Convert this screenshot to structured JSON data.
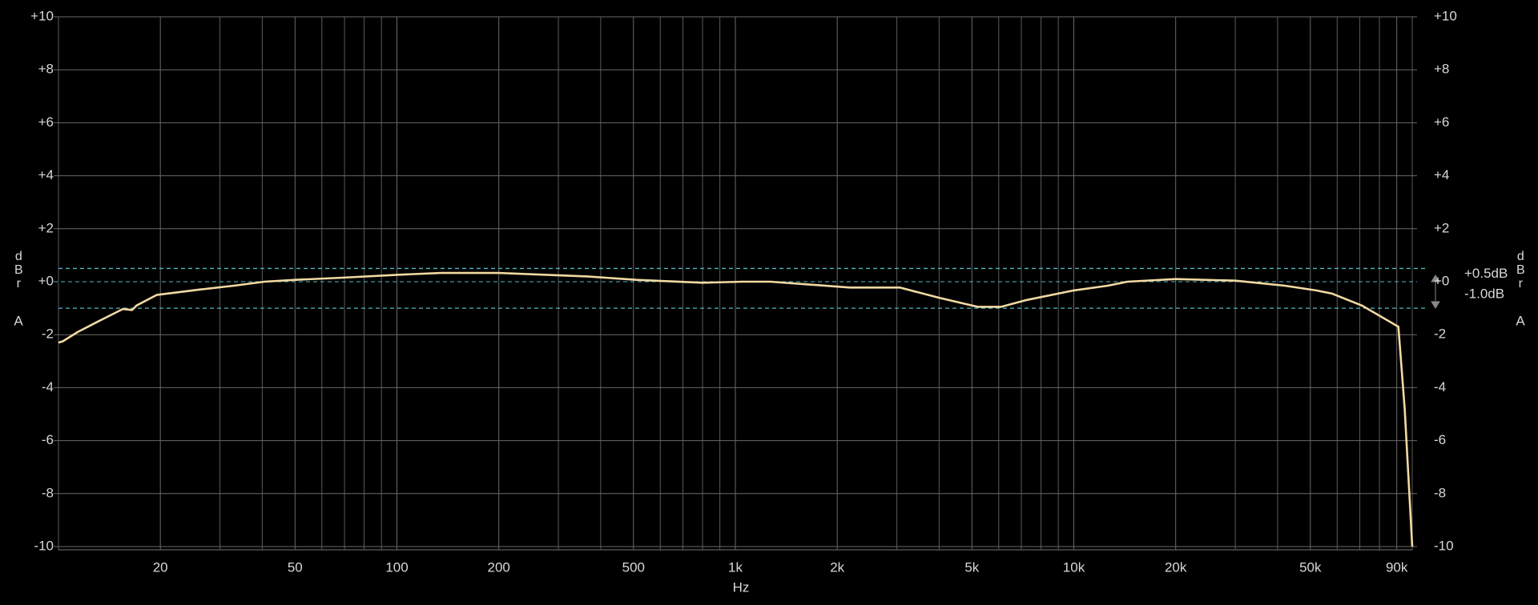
{
  "chart_data": {
    "type": "line",
    "log_x": true,
    "x_label": "Hz",
    "y_label_top": "dBr",
    "y_label_bottom": "A",
    "xlim": [
      10,
      100000
    ],
    "xticks": [
      20,
      50,
      100,
      200,
      500,
      {
        "value": 1000,
        "label": "1k"
      },
      {
        "value": 2000,
        "label": "2k"
      },
      {
        "value": 5000,
        "label": "5k"
      },
      {
        "value": 10000,
        "label": "10k"
      },
      {
        "value": 20000,
        "label": "20k"
      },
      {
        "value": 50000,
        "label": "50k"
      },
      {
        "value": 90000,
        "label": "90k"
      }
    ],
    "x_grid": [
      10,
      30,
      40,
      60,
      70,
      80,
      90,
      300,
      400,
      600,
      700,
      800,
      900,
      3000,
      4000,
      6000,
      7000,
      8000,
      9000,
      30000,
      40000,
      60000,
      70000,
      80000,
      100000
    ],
    "ylim": [
      -10,
      10
    ],
    "yticks": [
      {
        "value": 10,
        "label": "+10"
      },
      {
        "value": 8,
        "label": "+8"
      },
      {
        "value": 6,
        "label": "+6"
      },
      {
        "value": 4,
        "label": "+4"
      },
      {
        "value": 2,
        "label": "+2"
      },
      {
        "value": 0,
        "label": "+0"
      },
      -2,
      -4,
      -6,
      -8,
      -10
    ],
    "grid": true,
    "zero_line": true,
    "reference_lines": [
      {
        "value": 0.5,
        "label": "+0.5dB"
      },
      {
        "value": -1.0,
        "label": "-1.0dB"
      }
    ],
    "color": "#f2d9a2",
    "x": [
      10,
      10.3,
      11.4,
      13.1,
      15.5,
      16.5,
      17,
      19.5,
      26,
      33,
      40.6,
      50,
      69,
      100,
      135,
      200,
      365,
      510,
      800,
      1050,
      1270,
      2180,
      3060,
      3980,
      5200,
      6100,
      7200,
      10000,
      12600,
      14400,
      20000,
      30000,
      42000,
      52000,
      58000,
      71000,
      91000,
      95000,
      100000
    ],
    "values": [
      -2.3,
      -2.25,
      -1.9,
      -1.5,
      -1.03,
      -1.07,
      -0.9,
      -0.5,
      -0.3,
      -0.15,
      0,
      0.07,
      0.15,
      0.26,
      0.33,
      0.33,
      0.2,
      0.07,
      -0.04,
      0,
      0,
      -0.22,
      -0.22,
      -0.6,
      -0.95,
      -0.95,
      -0.7,
      -0.33,
      -0.15,
      0,
      0.1,
      0.04,
      -0.15,
      -0.33,
      -0.45,
      -0.9,
      -1.7,
      -4.8,
      -10
    ]
  }
}
